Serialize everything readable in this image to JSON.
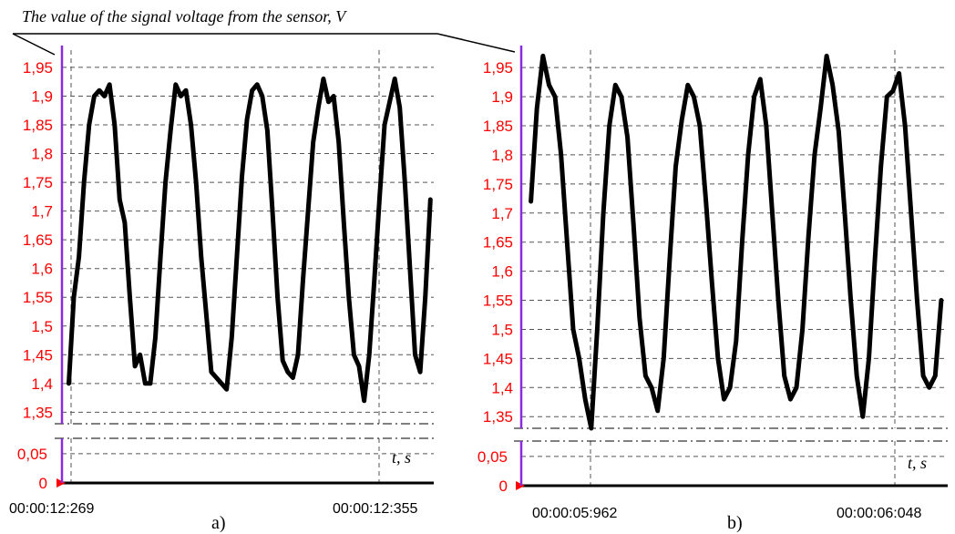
{
  "title": "The value of the signal voltage from the sensor, V",
  "colors": {
    "tick_labels": "#ff0000",
    "curve": "#000000",
    "axis_marker": "#8a2be2",
    "zero_marker": "#ff0000"
  },
  "chart_data": [
    {
      "type": "line",
      "panel_label": "a)",
      "xlabel": "t, s",
      "ylim": [
        1.33,
        1.98
      ],
      "lower_ylim": [
        0,
        0.07
      ],
      "yticks": [
        "1,95",
        "1,9",
        "1,85",
        "1,8",
        "1,75",
        "1,7",
        "1,65",
        "1,6",
        "1,55",
        "1,5",
        "1,45",
        "1,4",
        "1,35"
      ],
      "lower_yticks": [
        "0,05",
        "0"
      ],
      "x_start_label": "00:00:12:269",
      "x_end_label": "00:00:12:355",
      "xlim": [
        12.266,
        12.3755
      ],
      "grid": true,
      "series": [
        {
          "x": [
            12.268,
            12.2695,
            12.271,
            12.2725,
            12.274,
            12.2755,
            12.277,
            12.2785,
            12.28,
            12.2815,
            12.283,
            12.2845,
            12.286,
            12.2875,
            12.289,
            12.2905,
            12.292,
            12.2935,
            12.295,
            12.2965,
            12.298,
            12.2995,
            12.301,
            12.3025,
            12.304,
            12.3055,
            12.307,
            12.3085,
            12.31,
            12.3115,
            12.313,
            12.3145,
            12.316,
            12.3175,
            12.319,
            12.3205,
            12.322,
            12.3235,
            12.325,
            12.3265,
            12.328,
            12.3295,
            12.331,
            12.3325,
            12.334,
            12.3355,
            12.337,
            12.3385,
            12.34,
            12.3415,
            12.343,
            12.3445,
            12.346,
            12.3475,
            12.349,
            12.3505,
            12.352,
            12.3535,
            12.355,
            12.3565,
            12.358,
            12.3595,
            12.361,
            12.3625,
            12.364,
            12.3655,
            12.367,
            12.3685,
            12.37,
            12.3715,
            12.373,
            12.3745
          ],
          "y": [
            1.4,
            1.55,
            1.62,
            1.75,
            1.85,
            1.9,
            1.91,
            1.9,
            1.92,
            1.85,
            1.72,
            1.68,
            1.55,
            1.43,
            1.45,
            1.4,
            1.4,
            1.48,
            1.62,
            1.75,
            1.84,
            1.92,
            1.9,
            1.91,
            1.85,
            1.75,
            1.62,
            1.52,
            1.42,
            1.41,
            1.4,
            1.39,
            1.48,
            1.62,
            1.76,
            1.86,
            1.91,
            1.92,
            1.9,
            1.84,
            1.7,
            1.55,
            1.44,
            1.42,
            1.41,
            1.45,
            1.58,
            1.7,
            1.82,
            1.88,
            1.93,
            1.89,
            1.9,
            1.82,
            1.68,
            1.55,
            1.45,
            1.43,
            1.37,
            1.45,
            1.58,
            1.72,
            1.85,
            1.89,
            1.93,
            1.88,
            1.75,
            1.6,
            1.45,
            1.42,
            1.55,
            1.72
          ]
        }
      ]
    },
    {
      "type": "line",
      "panel_label": "b)",
      "xlabel": "t, s",
      "ylim": [
        1.33,
        1.98
      ],
      "lower_ylim": [
        0,
        0.07
      ],
      "yticks": [
        "1,95",
        "1,9",
        "1,85",
        "1,8",
        "1,75",
        "1,7",
        "1,65",
        "1,6",
        "1,55",
        "1,5",
        "1,45",
        "1,4",
        "1,35"
      ],
      "lower_yticks": [
        "0,05",
        "0"
      ],
      "x_start_label": "00:00:05:962",
      "x_end_label": "00:00:06:048",
      "xlim": [
        5.9516,
        6.0576
      ],
      "grid": true,
      "series": [
        {
          "x": [
            5.954,
            5.9555,
            5.957,
            5.9585,
            5.96,
            5.9615,
            5.963,
            5.9645,
            5.966,
            5.9675,
            5.969,
            5.9705,
            5.972,
            5.9735,
            5.975,
            5.9765,
            5.978,
            5.9795,
            5.981,
            5.9825,
            5.984,
            5.9855,
            5.987,
            5.9885,
            5.99,
            5.9915,
            5.993,
            5.9945,
            5.996,
            5.9975,
            5.999,
            6.0005,
            6.002,
            6.0035,
            6.005,
            6.0065,
            6.008,
            6.0095,
            6.011,
            6.0125,
            6.014,
            6.0155,
            6.017,
            6.0185,
            6.02,
            6.0215,
            6.023,
            6.0245,
            6.026,
            6.0275,
            6.029,
            6.0305,
            6.032,
            6.0335,
            6.035,
            6.0365,
            6.038,
            6.0395,
            6.041,
            6.0425,
            6.044,
            6.0455,
            6.047,
            6.0485,
            6.05,
            6.0515,
            6.053,
            6.0545,
            6.056
          ],
          "y": [
            1.72,
            1.88,
            1.97,
            1.92,
            1.9,
            1.8,
            1.65,
            1.5,
            1.45,
            1.38,
            1.33,
            1.5,
            1.7,
            1.85,
            1.92,
            1.9,
            1.83,
            1.68,
            1.52,
            1.42,
            1.4,
            1.36,
            1.45,
            1.62,
            1.78,
            1.86,
            1.92,
            1.9,
            1.85,
            1.72,
            1.58,
            1.45,
            1.38,
            1.4,
            1.48,
            1.65,
            1.8,
            1.9,
            1.93,
            1.85,
            1.7,
            1.55,
            1.42,
            1.38,
            1.4,
            1.5,
            1.66,
            1.8,
            1.88,
            1.97,
            1.92,
            1.84,
            1.7,
            1.55,
            1.42,
            1.35,
            1.45,
            1.62,
            1.78,
            1.9,
            1.91,
            1.94,
            1.85,
            1.7,
            1.55,
            1.42,
            1.4,
            1.42,
            1.55
          ]
        }
      ]
    }
  ]
}
